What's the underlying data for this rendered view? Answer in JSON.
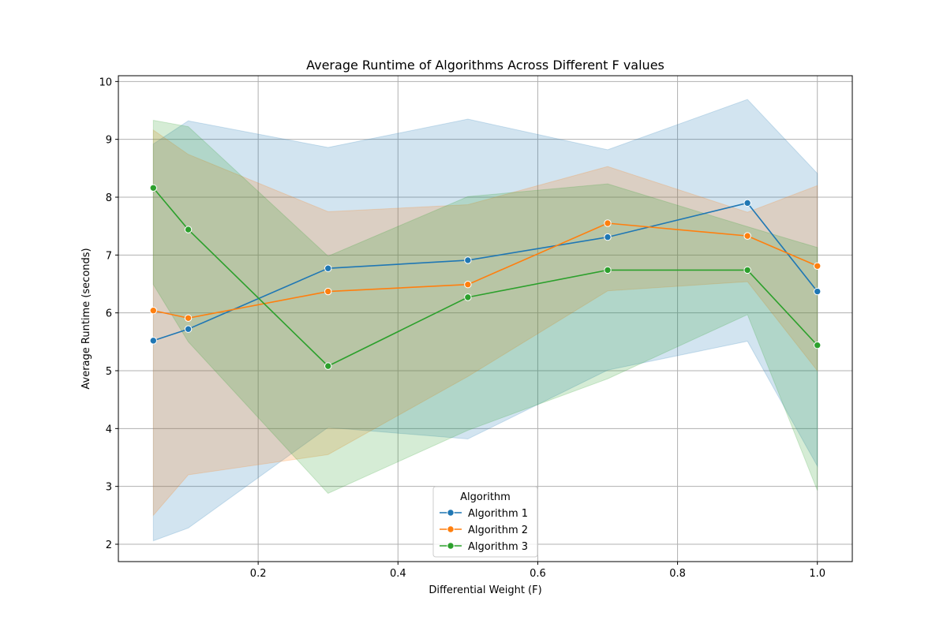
{
  "chart_data": {
    "type": "line",
    "title": "Average Runtime of Algorithms Across Different F values",
    "xlabel": "Differential Weight (F)",
    "ylabel": "Average Runtime (seconds)",
    "xlim": [
      0.0,
      1.05
    ],
    "ylim": [
      1.7,
      10.1
    ],
    "xticks": [
      0.2,
      0.4,
      0.6,
      0.8,
      1.0
    ],
    "xtick_labels": [
      "0.2",
      "0.4",
      "0.6",
      "0.8",
      "1.0"
    ],
    "yticks": [
      2,
      3,
      4,
      5,
      6,
      7,
      8,
      9,
      10
    ],
    "ytick_labels": [
      "2",
      "3",
      "4",
      "5",
      "6",
      "7",
      "8",
      "9",
      "10"
    ],
    "grid": true,
    "legend": {
      "title": "Algorithm",
      "placement": "lower-center"
    },
    "x": [
      0.05,
      0.1,
      0.3,
      0.5,
      0.7,
      0.9,
      1.0
    ],
    "series": [
      {
        "name": "Algorithm 1",
        "color": "#1f77b4",
        "values": [
          5.52,
          5.72,
          6.77,
          6.91,
          7.31,
          7.9,
          6.37
        ],
        "band_lower": [
          2.06,
          2.28,
          4.02,
          3.82,
          5.01,
          5.51,
          3.35
        ],
        "band_upper": [
          8.92,
          9.32,
          8.86,
          9.35,
          8.82,
          9.69,
          8.41
        ]
      },
      {
        "name": "Algorithm 2",
        "color": "#ff7f0e",
        "values": [
          6.04,
          5.91,
          6.37,
          6.49,
          7.55,
          7.33,
          6.81
        ],
        "band_lower": [
          2.5,
          3.2,
          3.55,
          4.9,
          6.38,
          6.54,
          5.0
        ],
        "band_upper": [
          9.16,
          8.74,
          7.75,
          7.87,
          8.53,
          7.74,
          8.2
        ]
      },
      {
        "name": "Algorithm 3",
        "color": "#2ca02c",
        "values": [
          8.16,
          7.44,
          5.08,
          6.27,
          6.74,
          6.74,
          5.44
        ],
        "band_lower": [
          6.49,
          5.5,
          2.88,
          3.97,
          4.86,
          5.97,
          2.93
        ],
        "band_upper": [
          9.33,
          9.22,
          6.98,
          8.01,
          8.23,
          7.49,
          7.13
        ]
      }
    ]
  }
}
